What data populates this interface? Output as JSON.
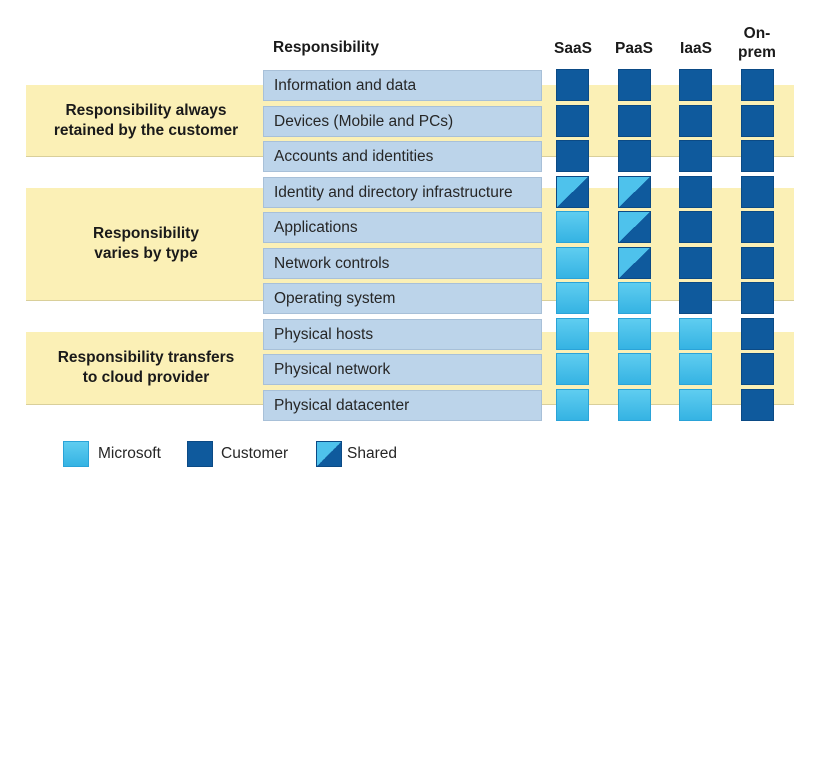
{
  "header": {
    "responsibility": "Responsibility"
  },
  "columns": [
    "SaaS",
    "PaaS",
    "IaaS",
    "On-\nprem"
  ],
  "groups": [
    {
      "label": "Responsibility always\nretained by the customer"
    },
    {
      "label": "Responsibility\nvaries by type"
    },
    {
      "label": "Responsibility transfers\nto cloud provider"
    }
  ],
  "rows": [
    {
      "label": "Information and data",
      "cells": [
        "customer",
        "customer",
        "customer",
        "customer"
      ]
    },
    {
      "label": "Devices (Mobile and PCs)",
      "cells": [
        "customer",
        "customer",
        "customer",
        "customer"
      ]
    },
    {
      "label": "Accounts and identities",
      "cells": [
        "customer",
        "customer",
        "customer",
        "customer"
      ]
    },
    {
      "label": "Identity and directory infrastructure",
      "cells": [
        "shared",
        "shared",
        "customer",
        "customer"
      ]
    },
    {
      "label": "Applications",
      "cells": [
        "microsoft",
        "shared",
        "customer",
        "customer"
      ]
    },
    {
      "label": "Network controls",
      "cells": [
        "microsoft",
        "shared",
        "customer",
        "customer"
      ]
    },
    {
      "label": "Operating system",
      "cells": [
        "microsoft",
        "microsoft",
        "customer",
        "customer"
      ]
    },
    {
      "label": "Physical hosts",
      "cells": [
        "microsoft",
        "microsoft",
        "microsoft",
        "customer"
      ]
    },
    {
      "label": "Physical network",
      "cells": [
        "microsoft",
        "microsoft",
        "microsoft",
        "customer"
      ]
    },
    {
      "label": "Physical datacenter",
      "cells": [
        "microsoft",
        "microsoft",
        "microsoft",
        "customer"
      ]
    }
  ],
  "legend": [
    {
      "type": "microsoft",
      "label": "Microsoft"
    },
    {
      "type": "customer",
      "label": "Customer"
    },
    {
      "type": "shared",
      "label": "Shared"
    }
  ]
}
